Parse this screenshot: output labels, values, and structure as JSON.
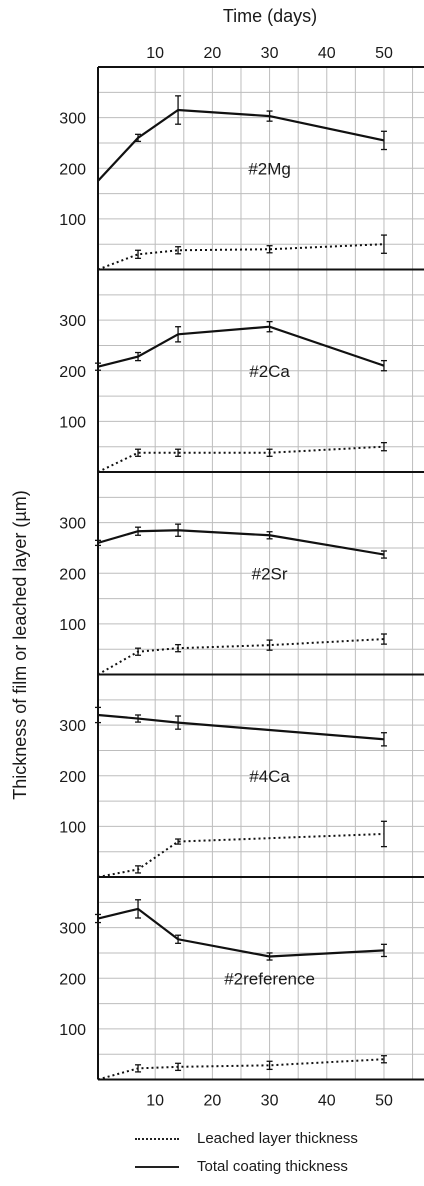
{
  "chart_data": {
    "type": "line",
    "title": "",
    "xlabel": "Time (days)",
    "ylabel": "Thickness of film or leached layer (µm)",
    "xlim": [
      0,
      57
    ],
    "x_ticks": [
      10,
      20,
      30,
      40,
      50
    ],
    "y_ticks": [
      100,
      200,
      300
    ],
    "ylim": [
      0,
      400
    ],
    "grid": true,
    "legend_position": "bottom",
    "series_styles": [
      {
        "key": "leached",
        "label": "Leached layer thickness",
        "style": "dotted"
      },
      {
        "key": "total",
        "label": "Total coating thickness",
        "style": "solid"
      }
    ],
    "panels": [
      {
        "label": "#2Mg",
        "total": {
          "x": [
            0,
            7,
            14,
            30,
            50
          ],
          "y": [
            175,
            260,
            315,
            303,
            255
          ],
          "err": [
            0,
            7,
            28,
            10,
            18
          ]
        },
        "leached": {
          "x": [
            0,
            7,
            14,
            30,
            50
          ],
          "y": [
            0,
            30,
            38,
            40,
            50
          ],
          "err": [
            0,
            8,
            7,
            7,
            18
          ]
        }
      },
      {
        "label": "#2Ca",
        "total": {
          "x": [
            0,
            7,
            14,
            30,
            50
          ],
          "y": [
            208,
            228,
            272,
            287,
            210
          ],
          "err": [
            7,
            8,
            15,
            10,
            10
          ]
        },
        "leached": {
          "x": [
            0,
            7,
            14,
            30,
            50
          ],
          "y": [
            0,
            38,
            38,
            38,
            50
          ],
          "err": [
            0,
            7,
            7,
            7,
            8
          ]
        }
      },
      {
        "label": "#2Sr",
        "total": {
          "x": [
            0,
            7,
            14,
            30,
            50
          ],
          "y": [
            260,
            283,
            285,
            275,
            237
          ],
          "err": [
            5,
            8,
            12,
            7,
            7
          ]
        },
        "leached": {
          "x": [
            0,
            7,
            14,
            30,
            50
          ],
          "y": [
            0,
            45,
            52,
            58,
            70
          ],
          "err": [
            0,
            7,
            7,
            10,
            10
          ]
        }
      },
      {
        "label": "#4Ca",
        "total": {
          "x": [
            0,
            7,
            14,
            50
          ],
          "y": [
            320,
            313,
            305,
            272
          ],
          "err": [
            15,
            7,
            13,
            13
          ]
        },
        "leached": {
          "x": [
            0,
            7,
            14,
            50
          ],
          "y": [
            0,
            15,
            70,
            85
          ],
          "err": [
            0,
            7,
            5,
            25
          ]
        }
      },
      {
        "label": "#2reference",
        "total": {
          "x": [
            0,
            7,
            14,
            30,
            50
          ],
          "y": [
            318,
            337,
            277,
            243,
            255
          ],
          "err": [
            8,
            18,
            8,
            7,
            12
          ]
        },
        "leached": {
          "x": [
            0,
            7,
            14,
            30,
            50
          ],
          "y": [
            0,
            22,
            25,
            28,
            40
          ],
          "err": [
            0,
            7,
            7,
            8,
            7
          ]
        }
      }
    ]
  }
}
